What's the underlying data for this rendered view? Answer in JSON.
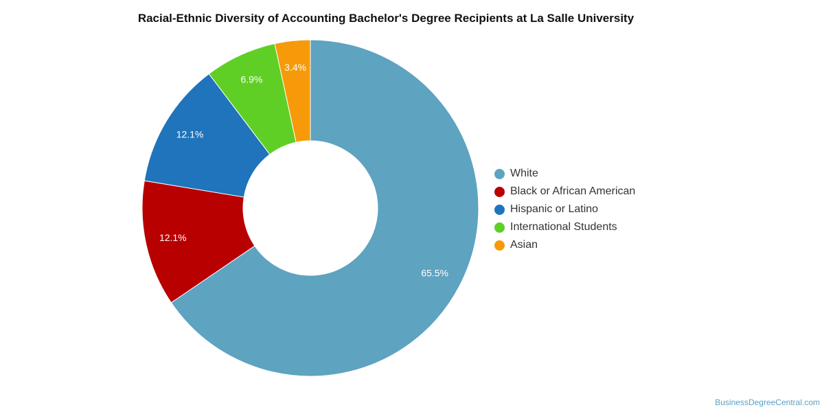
{
  "chart_data": {
    "type": "pie",
    "title": "Racial-Ethnic Diversity of Accounting Bachelor's Degree Recipients at La Salle University",
    "categories": [
      "White",
      "Black or African American",
      "Hispanic or Latino",
      "International Students",
      "Asian"
    ],
    "values": [
      65.5,
      12.1,
      12.1,
      6.9,
      3.4
    ],
    "value_labels": [
      "65.5%",
      "12.1%",
      "12.1%",
      "6.9%",
      "3.4%"
    ],
    "colors": [
      "#5ea3c0",
      "#b80000",
      "#1f74bb",
      "#60cf25",
      "#f79a0a"
    ],
    "donut": true,
    "legend": "right"
  },
  "watermark": "BusinessDegreeCentral.com"
}
